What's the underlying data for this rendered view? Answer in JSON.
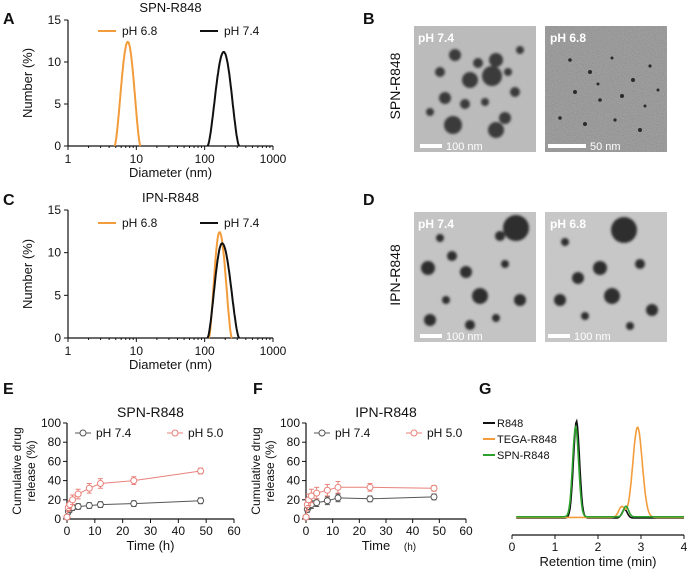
{
  "panels": {
    "A": {
      "letter": "A",
      "title": "SPN-R848"
    },
    "B": {
      "letter": "B",
      "row_label": "SPN-R848",
      "left_ph": "pH 7.4",
      "right_ph": "pH 6.8",
      "left_scale": "100 nm",
      "right_scale": "50 nm"
    },
    "C": {
      "letter": "C",
      "title": "IPN-R848"
    },
    "D": {
      "letter": "D",
      "row_label": "IPN-R848",
      "left_ph": "pH 7.4",
      "right_ph": "pH 6.8",
      "left_scale": "100 nm",
      "right_scale": "100 nm"
    },
    "E": {
      "letter": "E"
    },
    "F": {
      "letter": "F"
    },
    "G": {
      "letter": "G"
    }
  },
  "colors": {
    "orange": "#f39c3c",
    "black": "#111111",
    "red": "#e8817a",
    "gray": "#555555",
    "green": "#2ca02c"
  },
  "chart_data": [
    {
      "id": "A",
      "type": "line",
      "title": "SPN-R848",
      "xlabel": "Diameter (nm)",
      "ylabel": "Number (%)",
      "xscale": "log",
      "xlim": [
        1,
        1000
      ],
      "ylim": [
        0,
        15
      ],
      "xticks": [
        "1",
        "10",
        "100",
        "1000"
      ],
      "yticks": [
        "0",
        "5",
        "10",
        "15"
      ],
      "series": [
        {
          "name": "pH 6.8",
          "color": "#f39c3c",
          "peak_x": 7.5,
          "peak_y": 12.4,
          "start_x": 4.8,
          "end_x": 11.5
        },
        {
          "name": "pH 7.4",
          "color": "#111111",
          "peak_x": 190,
          "peak_y": 11.2,
          "start_x": 110,
          "end_x": 320
        }
      ]
    },
    {
      "id": "C",
      "type": "line",
      "title": "IPN-R848",
      "xlabel": "Diameter (nm)",
      "ylabel": "Number (%)",
      "xscale": "log",
      "xlim": [
        1,
        1000
      ],
      "ylim": [
        0,
        15
      ],
      "xticks": [
        "1",
        "10",
        "100",
        "1000"
      ],
      "yticks": [
        "0",
        "5",
        "10",
        "15"
      ],
      "series": [
        {
          "name": "pH 6.8",
          "color": "#f39c3c",
          "peak_x": 165,
          "peak_y": 12.4,
          "start_x": 115,
          "end_x": 250
        },
        {
          "name": "pH 7.4",
          "color": "#111111",
          "peak_x": 180,
          "peak_y": 11.1,
          "start_x": 110,
          "end_x": 320
        }
      ]
    },
    {
      "id": "E",
      "type": "line",
      "title": "SPN-R848",
      "xlabel": "Time (h)",
      "ylabel_lines": [
        "Cumulative drug",
        "release (%)"
      ],
      "xlim": [
        0,
        60
      ],
      "ylim": [
        0,
        100
      ],
      "xticks": [
        "0",
        "10",
        "20",
        "30",
        "40",
        "50",
        "60"
      ],
      "yticks": [
        "0",
        "20",
        "40",
        "60",
        "80",
        "100"
      ],
      "series": [
        {
          "name": "pH 7.4",
          "color": "#555555",
          "x": [
            0,
            0.5,
            1,
            2,
            4,
            8,
            12,
            24,
            48
          ],
          "y": [
            2,
            8,
            10,
            12,
            13,
            14,
            15,
            16,
            19
          ],
          "err": [
            0,
            3,
            3,
            3,
            3,
            3,
            3,
            3,
            3
          ]
        },
        {
          "name": "pH 5.0",
          "color": "#e8817a",
          "x": [
            0,
            0.5,
            1,
            2,
            4,
            8,
            12,
            24,
            48
          ],
          "y": [
            2,
            12,
            15,
            20,
            26,
            32,
            37,
            40,
            50
          ],
          "err": [
            0,
            4,
            4,
            5,
            5,
            5,
            5,
            4,
            3
          ]
        }
      ]
    },
    {
      "id": "F",
      "type": "line",
      "title": "IPN-R848",
      "xlabel": "Time",
      "xlabel_unit": "(h)",
      "ylabel_lines": [
        "Cumulative drug",
        "release (%)"
      ],
      "xlim": [
        0,
        60
      ],
      "ylim": [
        0,
        100
      ],
      "xticks": [
        "0",
        "10",
        "20",
        "30",
        "40",
        "50",
        "60"
      ],
      "yticks": [
        "0",
        "20",
        "40",
        "60",
        "80",
        "100"
      ],
      "series": [
        {
          "name": "pH 7.4",
          "color": "#555555",
          "x": [
            0,
            0.5,
            1,
            2,
            4,
            8,
            12,
            24,
            48
          ],
          "y": [
            2,
            10,
            13,
            15,
            17,
            19,
            22,
            21,
            23
          ],
          "err": [
            0,
            3,
            3,
            4,
            4,
            4,
            4,
            3,
            3
          ]
        },
        {
          "name": "pH 5.0",
          "color": "#e8817a",
          "x": [
            0,
            0.5,
            1,
            2,
            4,
            8,
            12,
            24,
            48
          ],
          "y": [
            2,
            15,
            20,
            24,
            27,
            30,
            33,
            33,
            32
          ],
          "err": [
            0,
            6,
            6,
            7,
            6,
            6,
            6,
            4,
            3
          ]
        }
      ]
    },
    {
      "id": "G",
      "type": "line",
      "xlabel": "Retention time (min)",
      "xlim": [
        0,
        4
      ],
      "ylim": [
        0,
        1
      ],
      "xticks": [
        "0",
        "1",
        "2",
        "3",
        "4"
      ],
      "series": [
        {
          "name": "R848",
          "color": "#111111",
          "peaks": [
            [
              1.5,
              1.0,
              0.07
            ],
            [
              2.62,
              0.09,
              0.06
            ]
          ]
        },
        {
          "name": "TEGA-R848",
          "color": "#f39c3c",
          "peaks": [
            [
              2.92,
              0.93,
              0.11
            ],
            [
              2.55,
              0.11,
              0.07
            ]
          ]
        },
        {
          "name": "SPN-R848",
          "color": "#2ca02c",
          "peaks": [
            [
              1.48,
              0.93,
              0.07
            ],
            [
              2.65,
              0.11,
              0.06
            ]
          ]
        }
      ]
    }
  ]
}
